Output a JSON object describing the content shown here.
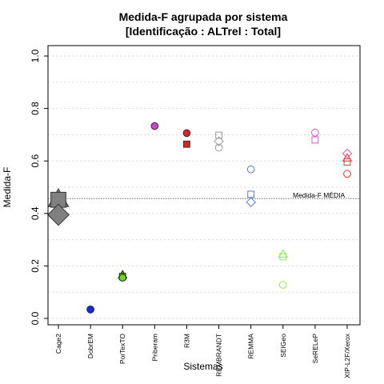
{
  "chart_data": {
    "type": "scatter",
    "title": "Medida-F agrupada por sistema",
    "subtitle": "[Identificação : ALTrel : Total]",
    "xlabel": "Sistemas",
    "ylabel": "Medida-F",
    "ylim": [
      0,
      1
    ],
    "yticks": [
      "0.0",
      "0.2",
      "0.4",
      "0.6",
      "0.8",
      "1.0"
    ],
    "grid": "horizontal-dotted",
    "categories": [
      "Cage2",
      "DobrEM",
      "PorTexTO",
      "Priberam",
      "R3M",
      "REMBRANDT",
      "REMMA",
      "SEIGeo",
      "SeRELeP",
      "XIP-L2F/Xerox"
    ],
    "reference_line": {
      "label": "Medida-F MÉDIA",
      "value": 0.457
    },
    "points": [
      {
        "category": "Cage2",
        "value": 0.455,
        "shape": "triangle",
        "fill": "#808080",
        "stroke": "#333333",
        "size": 2.4
      },
      {
        "category": "Cage2",
        "value": 0.452,
        "shape": "square",
        "fill": "#808080",
        "stroke": "#333333",
        "size": 2.4
      },
      {
        "category": "Cage2",
        "value": 0.395,
        "shape": "diamond",
        "fill": "#808080",
        "stroke": "#333333",
        "size": 2.4
      },
      {
        "category": "DobrEM",
        "value": 0.034,
        "shape": "circle",
        "fill": "#1a2ecc",
        "stroke": "#0a1488",
        "size": 1
      },
      {
        "category": "PorTexTO",
        "value": 0.166,
        "shape": "triangle",
        "fill": "#66dd11",
        "stroke": "#222222",
        "size": 1
      },
      {
        "category": "PorTexTO",
        "value": 0.16,
        "shape": "square",
        "fill": "#66dd11",
        "stroke": "#222222",
        "size": 1
      },
      {
        "category": "PorTexTO",
        "value": 0.155,
        "shape": "circle",
        "fill": "#66dd11",
        "stroke": "#222222",
        "size": 1
      },
      {
        "category": "Priberam",
        "value": 0.733,
        "shape": "circle",
        "fill": "#cc44cc",
        "stroke": "#333333",
        "size": 1
      },
      {
        "category": "R3M",
        "value": 0.706,
        "shape": "circle",
        "fill": "#dd2222",
        "stroke": "#333333",
        "size": 1
      },
      {
        "category": "R3M",
        "value": 0.664,
        "shape": "square",
        "fill": "#dd2222",
        "stroke": "#333333",
        "size": 1
      },
      {
        "category": "REMBRANDT",
        "value": 0.698,
        "shape": "square",
        "fill": "none",
        "stroke": "#999999",
        "size": 1
      },
      {
        "category": "REMBRANDT",
        "value": 0.675,
        "shape": "diamond",
        "fill": "none",
        "stroke": "#999999",
        "size": 1
      },
      {
        "category": "REMBRANDT",
        "value": 0.651,
        "shape": "circle",
        "fill": "none",
        "stroke": "#999999",
        "size": 1
      },
      {
        "category": "REMMA",
        "value": 0.568,
        "shape": "circle",
        "fill": "none",
        "stroke": "#5577dd",
        "size": 1
      },
      {
        "category": "REMMA",
        "value": 0.473,
        "shape": "square",
        "fill": "none",
        "stroke": "#5577dd",
        "size": 1
      },
      {
        "category": "REMMA",
        "value": 0.443,
        "shape": "diamond",
        "fill": "none",
        "stroke": "#5577dd",
        "size": 1
      },
      {
        "category": "SEIGeo",
        "value": 0.245,
        "shape": "triangle",
        "fill": "none",
        "stroke": "#88ee44",
        "size": 1
      },
      {
        "category": "SEIGeo",
        "value": 0.235,
        "shape": "square",
        "fill": "none",
        "stroke": "#88ee44",
        "size": 1
      },
      {
        "category": "SEIGeo",
        "value": 0.128,
        "shape": "circle",
        "fill": "none",
        "stroke": "#88ee44",
        "size": 1
      },
      {
        "category": "SeRELeP",
        "value": 0.708,
        "shape": "circle",
        "fill": "none",
        "stroke": "#dd55dd",
        "size": 1
      },
      {
        "category": "SeRELeP",
        "value": 0.68,
        "shape": "square",
        "fill": "none",
        "stroke": "#dd55dd",
        "size": 1
      },
      {
        "category": "XIP-L2F/Xerox",
        "value": 0.628,
        "shape": "diamond",
        "fill": "none",
        "stroke": "#ee55aa",
        "size": 1
      },
      {
        "category": "XIP-L2F/Xerox",
        "value": 0.612,
        "shape": "triangle",
        "fill": "none",
        "stroke": "#ee3333",
        "size": 1
      },
      {
        "category": "XIP-L2F/Xerox",
        "value": 0.596,
        "shape": "square",
        "fill": "none",
        "stroke": "#ee3333",
        "size": 1
      },
      {
        "category": "XIP-L2F/Xerox",
        "value": 0.551,
        "shape": "circle",
        "fill": "none",
        "stroke": "#ee3333",
        "size": 1
      }
    ]
  }
}
